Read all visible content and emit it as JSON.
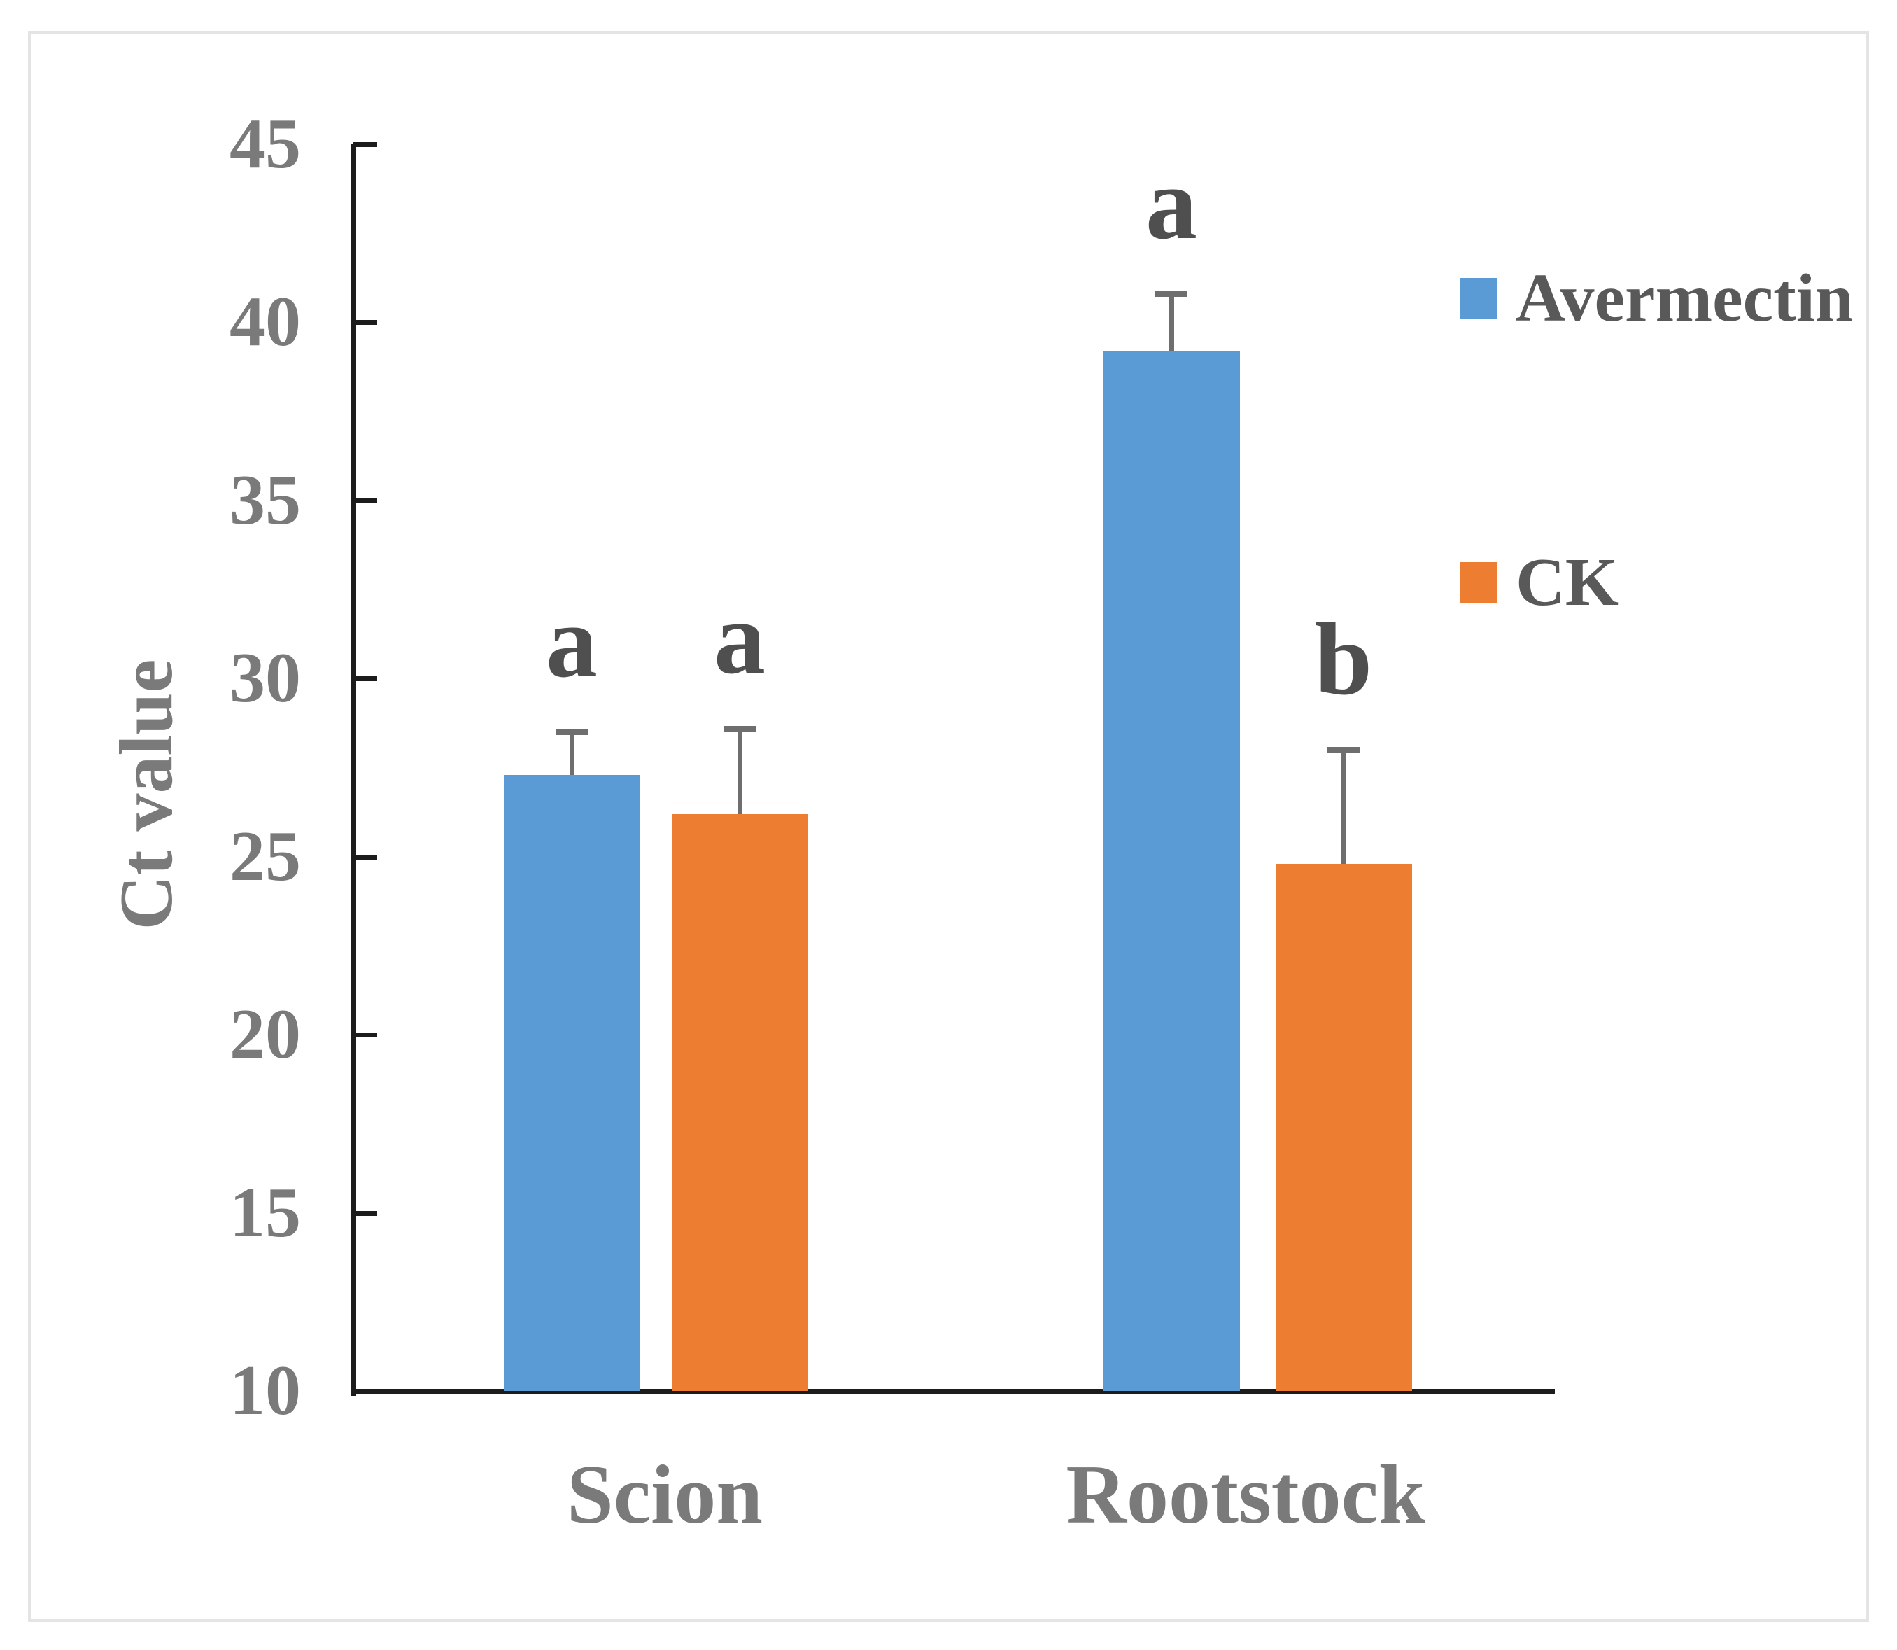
{
  "chart_data": {
    "type": "bar",
    "categories": [
      "Scion",
      "Rootstock"
    ],
    "series": [
      {
        "name": "Avermectin",
        "color": "#5B9BD5",
        "values": [
          27.3,
          39.2
        ],
        "errors": [
          1.2,
          1.6
        ],
        "sig_letters": [
          "a",
          "a"
        ]
      },
      {
        "name": "CK",
        "color": "#ED7D31",
        "values": [
          26.2,
          24.8
        ],
        "errors": [
          2.4,
          3.2
        ],
        "sig_letters": [
          "a",
          "b"
        ]
      }
    ],
    "title": "",
    "xlabel": "",
    "ylabel": "Ct value",
    "ylim": [
      10,
      45
    ],
    "yticks": [
      10,
      15,
      20,
      25,
      30,
      35,
      40,
      45
    ],
    "grid": false,
    "error_bars": true,
    "legend_position": "right",
    "axis_color": "#1c1c1c",
    "label_color": "#7a7a7a",
    "letter_color": "#4f4f4f",
    "error_bar_color": "#6e6e6e",
    "frame_color": "#e4e4e4"
  }
}
